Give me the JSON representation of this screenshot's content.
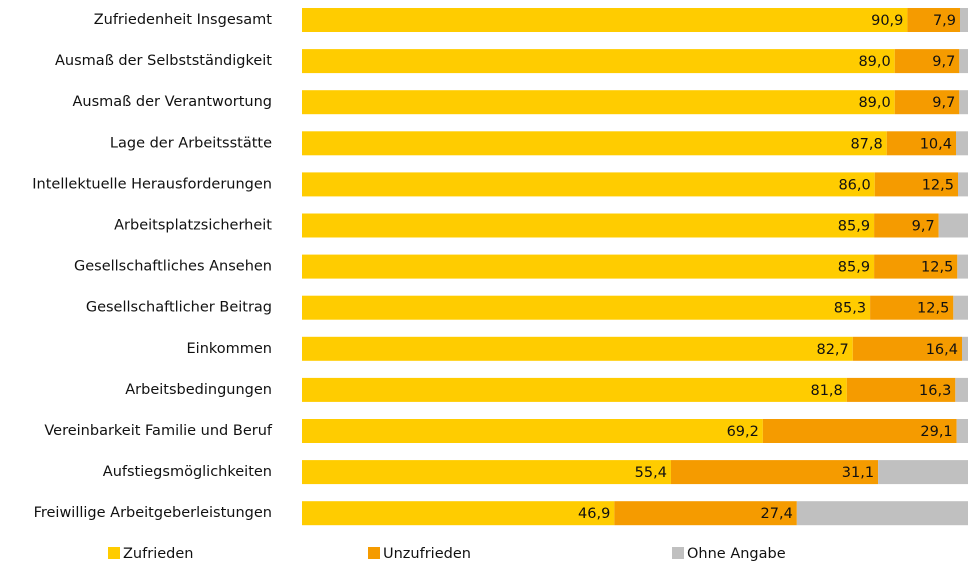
{
  "chart_data": {
    "type": "stacked-bar-horizontal",
    "categories": [
      "Zufriedenheit Insgesamt",
      "Ausmaß der Selbstständigkeit",
      "Ausmaß der Verantwortung",
      "Lage der Arbeitsstätte",
      "Intellektuelle Herausforderungen",
      "Arbeitsplatzsicherheit",
      "Gesellschaftliches Ansehen",
      "Gesellschaftlicher Beitrag",
      "Einkommen",
      "Arbeitsbedingungen",
      "Vereinbarkeit Familie und Beruf",
      "Aufstiegsmöglichkeiten",
      "Freiwillige Arbeitgeberleistungen"
    ],
    "series": [
      {
        "name": "Zufrieden",
        "color": "#ffcc00",
        "values": [
          90.9,
          89.0,
          89.0,
          87.8,
          86.0,
          85.9,
          85.9,
          85.3,
          82.7,
          81.8,
          69.2,
          55.4,
          46.9
        ],
        "value_labels": [
          "90,9",
          "89,0",
          "89,0",
          "87,8",
          "86,0",
          "85,9",
          "85,9",
          "85,3",
          "82,7",
          "81,8",
          "69,2",
          "55,4",
          "46,9"
        ]
      },
      {
        "name": "Unzufrieden",
        "color": "#f59b00",
        "values": [
          7.9,
          9.7,
          9.7,
          10.4,
          12.5,
          9.7,
          12.5,
          12.5,
          16.4,
          16.3,
          29.1,
          31.1,
          27.4
        ],
        "value_labels": [
          "7,9",
          "9,7",
          "9,7",
          "10,4",
          "12,5",
          "9,7",
          "12,5",
          "12,5",
          "16,4",
          "16,3",
          "29,1",
          "31,1",
          "27,4"
        ]
      },
      {
        "name": "Ohne Angabe",
        "color": "#c0c0c0",
        "values": [
          1.2,
          1.3,
          1.3,
          1.8,
          1.5,
          4.4,
          1.6,
          2.2,
          0.9,
          1.9,
          1.7,
          13.5,
          25.7
        ]
      }
    ],
    "xlim": [
      0,
      100
    ]
  }
}
